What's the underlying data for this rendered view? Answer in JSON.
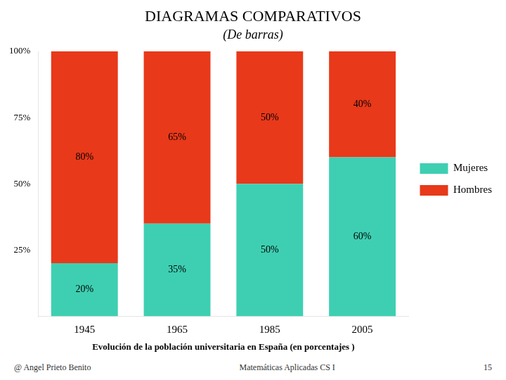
{
  "chart_data": {
    "type": "bar",
    "title": "DIAGRAMAS COMPARATIVOS",
    "subtitle": "(De barras)",
    "xlabel": "Evolución de la población universitaria en España (en porcentajes )",
    "categories": [
      "1945",
      "1965",
      "1985",
      "2005"
    ],
    "series": [
      {
        "name": "Mujeres",
        "color": "#3ECFB2",
        "values": [
          20,
          35,
          50,
          60
        ],
        "value_labels": [
          "20%",
          "35%",
          "50%",
          "60%"
        ]
      },
      {
        "name": "Hombres",
        "color": "#E8391A",
        "values": [
          80,
          65,
          50,
          40
        ],
        "value_labels": [
          "80%",
          "65%",
          "50%",
          "40%"
        ]
      }
    ],
    "stacked": true,
    "data_labels": true,
    "ylim": [
      0,
      100
    ],
    "yticks": [
      {
        "value": 0,
        "label": ""
      },
      {
        "value": 25,
        "label": "25%"
      },
      {
        "value": 50,
        "label": "50%"
      },
      {
        "value": 75,
        "label": "75%"
      },
      {
        "value": 100,
        "label": "100%"
      }
    ],
    "grid": false,
    "legend": "right",
    "annotations": [
      "@  Angel Prieto Benito",
      "Matemáticas Aplicadas CS I",
      "15"
    ]
  }
}
